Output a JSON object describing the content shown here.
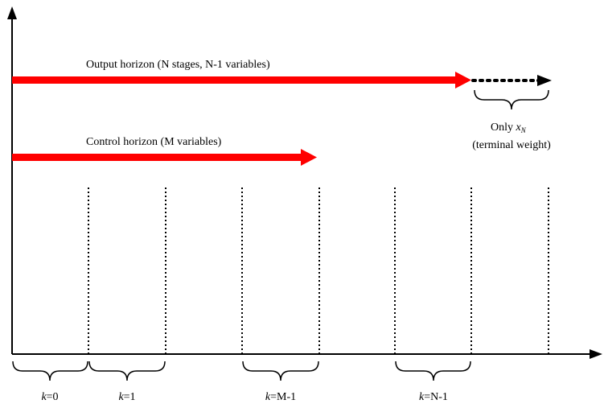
{
  "diagram": {
    "output_horizon_label": "Output horizon (N stages, N-1 variables)",
    "control_horizon_label": "Control horizon (M variables)",
    "terminal": {
      "line1_prefix": "Only ",
      "line1_var": "x",
      "line1_sub": "N",
      "line2": "(terminal weight)"
    },
    "stages": [
      {
        "var": "k",
        "value": "=0"
      },
      {
        "var": "k",
        "value": "=1"
      },
      {
        "var": "k",
        "value": "=M-1"
      },
      {
        "var": "k",
        "value": "=N-1"
      }
    ],
    "colors": {
      "horizon_arrow": "#ff0000",
      "axis": "#000000",
      "dotted": "#000000"
    }
  }
}
